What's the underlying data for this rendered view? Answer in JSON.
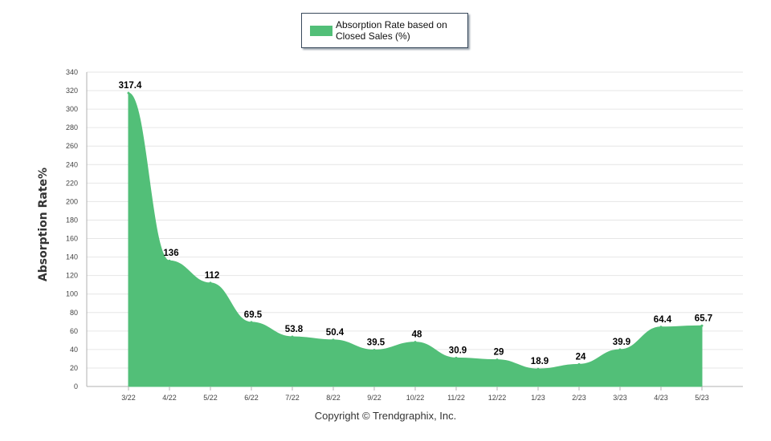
{
  "chart_data": {
    "type": "area",
    "categories": [
      "3/22",
      "4/22",
      "5/22",
      "6/22",
      "7/22",
      "8/22",
      "9/22",
      "10/22",
      "11/22",
      "12/22",
      "1/23",
      "2/23",
      "3/23",
      "4/23",
      "5/23"
    ],
    "series": [
      {
        "name": "Absorption Rate based on Closed Sales (%)",
        "values": [
          317.4,
          136,
          112,
          69.5,
          53.8,
          50.4,
          39.5,
          48,
          30.9,
          29,
          18.9,
          24,
          39.9,
          64.4,
          65.7
        ],
        "labels": [
          "317.4",
          "136",
          "112",
          "69.5",
          "53.8",
          "50.4",
          "39.5",
          "48",
          "30.9",
          "29",
          "18.9",
          "24",
          "39.9",
          "64.4",
          "65.7"
        ]
      }
    ],
    "ylabel": "Absorption Rate%",
    "xlabel": "",
    "ylim": [
      0,
      340
    ],
    "yticks": [
      "0",
      "20",
      "40",
      "60",
      "80",
      "100",
      "120",
      "140",
      "160",
      "180",
      "200",
      "220",
      "240",
      "260",
      "280",
      "300",
      "320",
      "340"
    ],
    "grid": true,
    "legend_position": "top-center",
    "colors": {
      "area": "#52bf78",
      "grid": "#e6e6e6",
      "axis": "#b0b0b0"
    }
  },
  "footer": {
    "copyright": "Copyright © Trendgraphix, Inc."
  }
}
